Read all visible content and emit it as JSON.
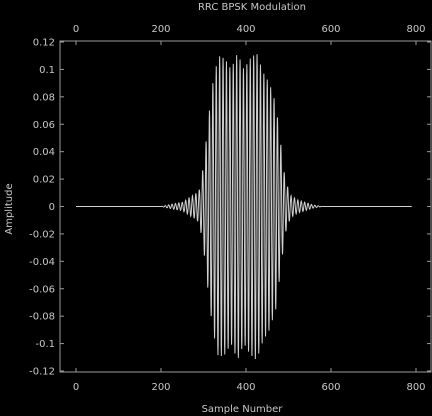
{
  "chart_data": {
    "type": "line",
    "title": "RRC BPSK Modulation",
    "xlabel": "Sample Number",
    "ylabel": "Amplitude",
    "xlim": [
      0,
      800
    ],
    "ylim": [
      -0.12,
      0.12
    ],
    "xticks": [
      0,
      200,
      400,
      600,
      800
    ],
    "xtick_labels": [
      "0",
      "200",
      "400",
      "600",
      "800"
    ],
    "yticks": [
      0.12,
      0.1,
      0.08,
      0.06,
      0.04,
      0.02,
      0,
      -0.02,
      -0.04,
      -0.06,
      -0.08,
      -0.1,
      -0.12
    ],
    "ytick_labels": [
      "0.12",
      "0.1",
      "0.08",
      "0.06",
      "0.04",
      "0.02",
      "0",
      "-0.02",
      "-0.04",
      "-0.06",
      "-0.08",
      "-0.1",
      "-0.12"
    ],
    "grid": false,
    "top_axis_ticks": true,
    "series": [
      {
        "color": "#d0d0d0",
        "x_range": [
          0,
          800
        ],
        "envelope": [
          [
            0,
            0
          ],
          [
            200,
            0
          ],
          [
            230,
            0.002
          ],
          [
            250,
            0.003
          ],
          [
            265,
            0.006
          ],
          [
            280,
            0.009
          ],
          [
            290,
            0.012
          ],
          [
            300,
            0.03
          ],
          [
            312,
            0.065
          ],
          [
            322,
            0.09
          ],
          [
            335,
            0.11
          ],
          [
            350,
            0.108
          ],
          [
            365,
            0.1
          ],
          [
            380,
            0.112
          ],
          [
            395,
            0.1
          ],
          [
            410,
            0.108
          ],
          [
            425,
            0.112
          ],
          [
            440,
            0.098
          ],
          [
            455,
            0.09
          ],
          [
            470,
            0.075
          ],
          [
            482,
            0.045
          ],
          [
            492,
            0.02
          ],
          [
            505,
            0.008
          ],
          [
            520,
            0.005
          ],
          [
            540,
            0.003
          ],
          [
            560,
            0.001
          ],
          [
            580,
            0
          ],
          [
            800,
            0
          ]
        ],
        "samples_per_cycle": 8
      }
    ]
  }
}
